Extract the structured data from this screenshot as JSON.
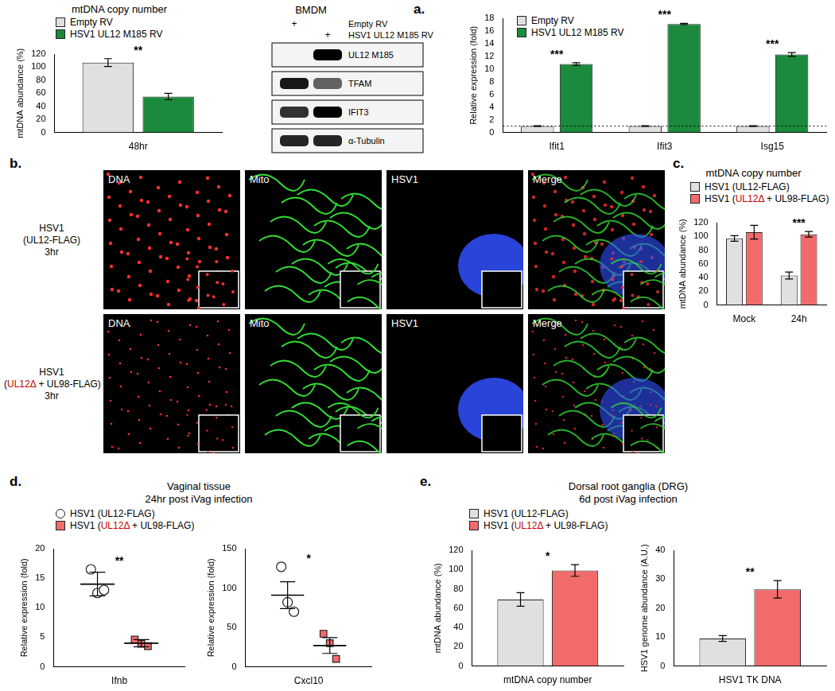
{
  "chart_data": [
    {
      "type": "bar",
      "panel": "a.",
      "title": "mtDNA copy number",
      "ylabel": "mtDNA abundance (%)",
      "categories": [
        "48hr"
      ],
      "series": [
        {
          "name": "Empty RV",
          "color": "#e0e0e0",
          "values": [
            107
          ],
          "error": [
            6
          ]
        },
        {
          "name": "HSV1 UL12 M185 RV",
          "color": "#1b8a3c",
          "values": [
            55
          ],
          "error": [
            5
          ]
        }
      ],
      "ylim": [
        0,
        120
      ],
      "yticks": [
        0,
        20,
        40,
        60,
        80,
        100,
        120
      ],
      "grid": false,
      "legend": "top left",
      "annotations": [
        {
          "text": "**",
          "x": "48hr"
        }
      ]
    },
    {
      "type": "bar",
      "ylabel": "Relative expression (fold)",
      "categories": [
        "Ifit1",
        "Ifit3",
        "Isg15"
      ],
      "series": [
        {
          "name": "Empty RV",
          "color": "#e0e0e0",
          "values": [
            1,
            1,
            1
          ],
          "error": [
            0.05,
            0.05,
            0.05
          ]
        },
        {
          "name": "HSV1 UL12 M185 RV",
          "color": "#1b8a3c",
          "values": [
            10.8,
            17.1,
            12.3
          ],
          "error": [
            0.2,
            0.1,
            0.3
          ]
        }
      ],
      "ylim": [
        0,
        18
      ],
      "yticks": [
        0,
        2,
        4,
        6,
        8,
        10,
        12,
        14,
        16,
        18
      ],
      "grid": false,
      "legend": "top left",
      "reference_line": {
        "value": 1,
        "line_style": "dotted"
      },
      "annotations": [
        {
          "text": "***",
          "x": "Ifit1"
        },
        {
          "text": "***",
          "x": "Ifit3"
        },
        {
          "text": "***",
          "x": "Isg15"
        }
      ]
    },
    {
      "type": "bar",
      "panel": "c.",
      "title": "mtDNA copy number",
      "ylabel": "mtDNA abundance (%)",
      "categories": [
        "Mock",
        "24h"
      ],
      "series": [
        {
          "name": "HSV1 (UL12-FLAG)",
          "color": "#e0e0e0",
          "values": [
            97,
            43
          ],
          "error": [
            4,
            5
          ]
        },
        {
          "name": "HSV1 (UL12Δ + UL98-FLAG)",
          "color": "#f26b6b",
          "values": [
            106,
            103
          ],
          "error": [
            10,
            4
          ]
        }
      ],
      "ylim": [
        0,
        120
      ],
      "yticks": [
        0,
        20,
        40,
        60,
        80,
        100,
        120
      ],
      "grid": false,
      "legend": "top left",
      "annotations": [
        {
          "text": "***",
          "x": "24h"
        }
      ]
    },
    {
      "type": "scatter",
      "panel": "d.",
      "title": "Vaginal tissue",
      "subtitle": "24hr post iVag infection",
      "ylabel": "Relative expression (fold)",
      "categories": [
        "Ifnb"
      ],
      "series": [
        {
          "name": "HSV1 (UL12-FLAG)",
          "color": "#ffffff",
          "marker": "circle",
          "values": [
            [
              16.5,
              12.5,
              13.0
            ]
          ],
          "mean": [
            14.0
          ],
          "error": [
            2.0
          ]
        },
        {
          "name": "HSV1 (UL12Δ + UL98-FLAG)",
          "color": "#f26b6b",
          "marker": "square",
          "values": [
            [
              4.6,
              3.9,
              3.5
            ]
          ],
          "mean": [
            4.0
          ],
          "error": [
            0.6
          ]
        }
      ],
      "ylim": [
        0,
        20
      ],
      "yticks": [
        0,
        5,
        10,
        15,
        20
      ],
      "grid": false,
      "legend": "top left",
      "annotations": [
        {
          "text": "**",
          "x": "Ifnb"
        }
      ]
    },
    {
      "type": "scatter",
      "ylabel": "Relative expression (fold)",
      "categories": [
        "Cxcl10"
      ],
      "series": [
        {
          "color": "#ffffff",
          "marker": "circle",
          "values": [
            [
              127,
              82,
              70
            ]
          ],
          "mean": [
            91
          ],
          "error": [
            17
          ]
        },
        {
          "color": "#f26b6b",
          "marker": "square",
          "values": [
            [
              42,
              30,
              10
            ]
          ],
          "mean": [
            27
          ],
          "error": [
            10
          ]
        }
      ],
      "ylim": [
        0,
        150
      ],
      "yticks": [
        0,
        50,
        100,
        150
      ],
      "grid": false,
      "annotations": [
        {
          "text": "*",
          "x": "Cxcl10"
        }
      ]
    },
    {
      "type": "bar",
      "panel": "e.",
      "title": "Dorsal root ganglia (DRG)",
      "subtitle": "6d post iVag infection",
      "ylabel": "mtDNA abundance (%)",
      "categories": [
        "mtDNA copy number"
      ],
      "series": [
        {
          "name": "HSV1 (UL12-FLAG)",
          "color": "#e0e0e0",
          "values": [
            69
          ],
          "error": [
            7
          ]
        },
        {
          "name": "HSV1 (UL12Δ + UL98-FLAG)",
          "color": "#f26b6b",
          "values": [
            99
          ],
          "error": [
            6
          ]
        }
      ],
      "ylim": [
        0,
        120
      ],
      "yticks": [
        0,
        20,
        40,
        60,
        80,
        100,
        120
      ],
      "grid": false,
      "legend": "top left",
      "annotations": [
        {
          "text": "*",
          "x": "mtDNA copy number"
        }
      ]
    },
    {
      "type": "bar",
      "ylabel": "HSV1 genome abundance (A.U.)",
      "categories": [
        "HSV1 TK DNA"
      ],
      "series": [
        {
          "color": "#e0e0e0",
          "values": [
            9.5
          ],
          "error": [
            1
          ]
        },
        {
          "color": "#f26b6b",
          "values": [
            26.5
          ],
          "error": [
            3
          ]
        }
      ],
      "ylim": [
        0,
        40
      ],
      "yticks": [
        0,
        10,
        20,
        30,
        40
      ],
      "grid": false,
      "annotations": [
        {
          "text": "**",
          "x": "HSV1 TK DNA"
        }
      ]
    }
  ],
  "western_blot": {
    "title": "BMDM",
    "conditions": [
      {
        "label": "Empty RV",
        "mark": "+",
        "lane": 0
      },
      {
        "label": "HSV1 UL12 M185 RV",
        "mark": "+",
        "lane": 1
      }
    ],
    "bands": [
      {
        "label": "UL12 M185",
        "intensity": [
          0,
          1
        ]
      },
      {
        "label": "TFAM",
        "intensity": [
          0.9,
          0.6
        ]
      },
      {
        "label": "IFIT3",
        "intensity": [
          0.8,
          1
        ]
      },
      {
        "label": "α-Tubulin",
        "intensity": [
          0.85,
          0.85
        ]
      }
    ]
  },
  "micrographs": {
    "panel": "b.",
    "channels": [
      {
        "label": "DNA",
        "color": "#ff3030"
      },
      {
        "label": "Mito",
        "color": "#33dd33"
      },
      {
        "label": "HSV1",
        "color": "#3050ff"
      },
      {
        "label": "Merge",
        "color": "#ffffff"
      }
    ],
    "rows": [
      {
        "label": [
          "HSV1",
          "(UL12-FLAG)",
          "3hr"
        ]
      },
      {
        "label": [
          "HSV1",
          "(UL12Δ + UL98-FLAG)",
          "3hr"
        ]
      }
    ]
  },
  "highlight": {
    "text": "UL12Δ",
    "color": "#c00000"
  }
}
